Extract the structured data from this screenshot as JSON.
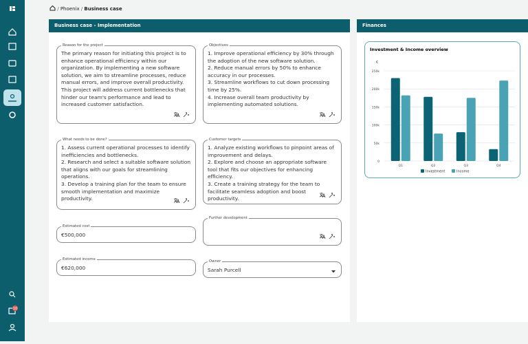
{
  "breadcrumb": {
    "items": [
      "Phoenix",
      "Business case"
    ]
  },
  "implementation": {
    "title": "Business case - Implementation",
    "fields": [
      {
        "label": "Reason for the project",
        "text": "The primary reason for initiating this project is to enhance operational efficiency within our organization. By implementing a new software solution, we aim to streamline processes, reduce manual errors, and improve overall productivity. This project will address current bottlenecks that hinder our team's performance and lead to increased customer satisfaction."
      },
      {
        "label": "Objectives",
        "items": [
          "1. Improve operational efficiency by 30% through the adoption of the new software solution.",
          "2. Reduce manual errors by 50% to enhance accuracy in our processes.",
          "3. Streamline workflows to cut down processing time by 25%.",
          "4. Increase overall team productivity by implementing automated solutions."
        ]
      },
      {
        "label": "What needs to be done?",
        "items": [
          "1. Assess current operational processes to identify inefficiencies and bottlenecks.",
          "2. Research and select a suitable software solution that aligns with our goals for streamlining operations.",
          "3. Develop a training plan for the team to ensure smooth implementation and maximize productivity."
        ]
      },
      {
        "label": "Customer targets",
        "items": [
          "1. Analyze existing workflows to pinpoint areas of improvement and delays.",
          "2. Explore and choose an appropriate software tool that fits our objectives for enhancing efficiency.",
          "3. Create a training strategy for the team to facilitate seamless adoption and boost productivity."
        ]
      },
      {
        "label": "Estimated cost",
        "text": "€500,000"
      },
      {
        "label": "Further development",
        "text": ""
      },
      {
        "label": "Estimated income",
        "text": "€620,000"
      },
      {
        "label": "Owner",
        "text": "Sarah Purcell"
      }
    ]
  },
  "finances": {
    "title": "Finances"
  },
  "nav": {
    "badge": "10"
  },
  "chart_data": {
    "type": "bar",
    "title": "Investment & Income overview",
    "y_label": "€",
    "categories": [
      "Q1",
      "Q2",
      "Q3",
      "Q4"
    ],
    "series": [
      {
        "name": "Investment",
        "color": "#0b6373",
        "values": [
          230000,
          178000,
          80000,
          33000
        ]
      },
      {
        "name": "Income",
        "color": "#4aa3b4",
        "values": [
          182000,
          76000,
          175000,
          223000
        ]
      }
    ],
    "ylim": [
      0,
      250000
    ],
    "yticks": [
      0,
      {
        "value": 50000,
        "label": "50k"
      },
      {
        "value": 100000,
        "label": "100k"
      },
      {
        "value": 150000,
        "label": "150k"
      },
      {
        "value": 200000,
        "label": "200k"
      },
      {
        "value": 250000,
        "label": "250k"
      }
    ],
    "grid": true
  }
}
